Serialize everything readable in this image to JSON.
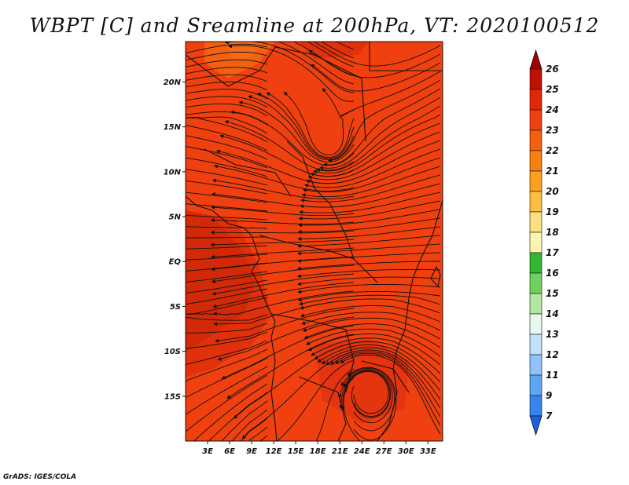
{
  "title": "WBPT [C] and Sreamline at 200hPa, VT: 2020100512",
  "credit": "GrADS: IGES/COLA",
  "colors": {
    "land_fill": "#f04010",
    "warm_fill": "#e0300c",
    "hot_fill": "#d22a08",
    "cool_fill": "#f26010",
    "outline": "#111111"
  },
  "map": {
    "lon_range": [
      0,
      35
    ],
    "lat_range": [
      -20,
      24.5
    ],
    "lon_ticks": [
      {
        "value": 3,
        "label": "3E"
      },
      {
        "value": 6,
        "label": "6E"
      },
      {
        "value": 9,
        "label": "9E"
      },
      {
        "value": 12,
        "label": "12E"
      },
      {
        "value": 15,
        "label": "15E"
      },
      {
        "value": 18,
        "label": "18E"
      },
      {
        "value": 21,
        "label": "21E"
      },
      {
        "value": 24,
        "label": "24E"
      },
      {
        "value": 27,
        "label": "27E"
      },
      {
        "value": 30,
        "label": "30E"
      },
      {
        "value": 33,
        "label": "33E"
      }
    ],
    "lat_ticks": [
      {
        "value": 20,
        "label": "20N"
      },
      {
        "value": 15,
        "label": "15N"
      },
      {
        "value": 10,
        "label": "10N"
      },
      {
        "value": 5,
        "label": "5N"
      },
      {
        "value": 0,
        "label": "EQ"
      },
      {
        "value": -5,
        "label": "5S"
      },
      {
        "value": -10,
        "label": "10S"
      },
      {
        "value": -15,
        "label": "15S"
      }
    ]
  },
  "colorbar": {
    "labels": [
      "26",
      "25",
      "24",
      "23",
      "22",
      "21",
      "20",
      "19",
      "18",
      "17",
      "16",
      "15",
      "14",
      "13",
      "12",
      "11",
      "9",
      "7"
    ],
    "top_arrow_color": "#a00000",
    "bottom_arrow_color": "#1c5fe0",
    "colors": [
      "#c01000",
      "#e02808",
      "#f04010",
      "#f46010",
      "#f88010",
      "#fca020",
      "#fcc040",
      "#fce080",
      "#fcf4b0",
      "#30b830",
      "#70d060",
      "#b0e8a0",
      "#e8f8f0",
      "#c0e0fc",
      "#90c4f8",
      "#60a4f4",
      "#3884ec",
      "#1c5fe0"
    ]
  }
}
